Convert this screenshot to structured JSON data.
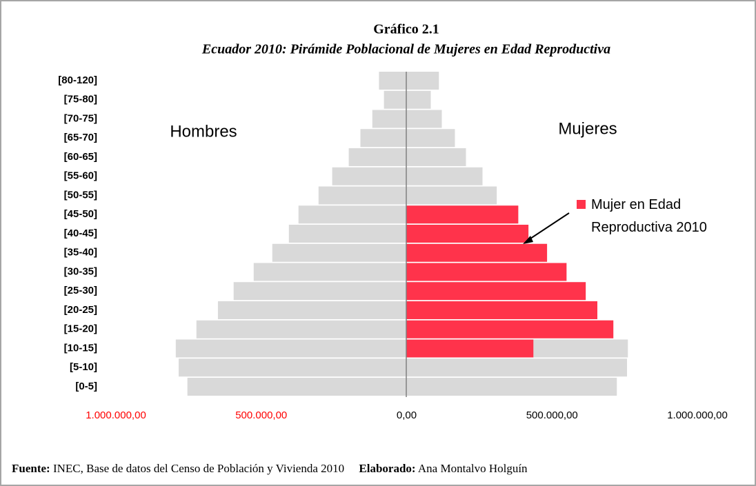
{
  "chart_data": {
    "type": "pyramid",
    "title": "Gráfico 2.1",
    "subtitle": "Ecuador 2010: Pirámide Poblacional de Mujeres en Edad Reproductiva",
    "categories": [
      "[80-120]",
      "[75-80]",
      "[70-75]",
      "[65-70]",
      "[60-65]",
      "[55-60]",
      "[50-55]",
      "[45-50]",
      "[40-45]",
      "[35-40]",
      "[30-35]",
      "[25-30]",
      "[20-25]",
      "[15-20]",
      "[10-15]",
      "[5-10]",
      "[0-5]"
    ],
    "series": [
      {
        "name": "Hombres",
        "color": "#d9d9d9",
        "side": "left",
        "values": [
          95000,
          78000,
          118000,
          159000,
          199000,
          256000,
          303000,
          372000,
          405000,
          462000,
          526000,
          595000,
          649000,
          723000,
          794000,
          784000,
          754000
        ]
      },
      {
        "name": "Mujeres",
        "color": "#d9d9d9",
        "side": "right",
        "values": [
          111000,
          83000,
          121000,
          166000,
          204000,
          261000,
          310000,
          384000,
          419000,
          483000,
          550000,
          616000,
          656000,
          711000,
          761000,
          758000,
          723000
        ]
      },
      {
        "name": "Mujer en Edad Reproductiva 2010",
        "color": "#ff334b",
        "side": "right",
        "values": [
          null,
          null,
          null,
          null,
          null,
          null,
          null,
          384000,
          419000,
          483000,
          550000,
          616000,
          656000,
          711000,
          436000,
          null,
          null
        ]
      }
    ],
    "xlim": [
      -1000000,
      1000000
    ],
    "xticks": [
      {
        "value": -1000000,
        "label": "1.000.000,00"
      },
      {
        "value": -500000,
        "label": "500.000,00"
      },
      {
        "value": 0,
        "label": "0,00"
      },
      {
        "value": 500000,
        "label": "500.000,00"
      },
      {
        "value": 1000000,
        "label": "1.000.000,00"
      }
    ],
    "negative_tick_color": "#ff0000"
  },
  "footer": {
    "source_label": "Fuente:",
    "source_text": "INEC, Base de datos del Censo de Población y Vivienda 2010",
    "author_label": "Elaborado:",
    "author_text": "Ana Montalvo Holguín"
  }
}
